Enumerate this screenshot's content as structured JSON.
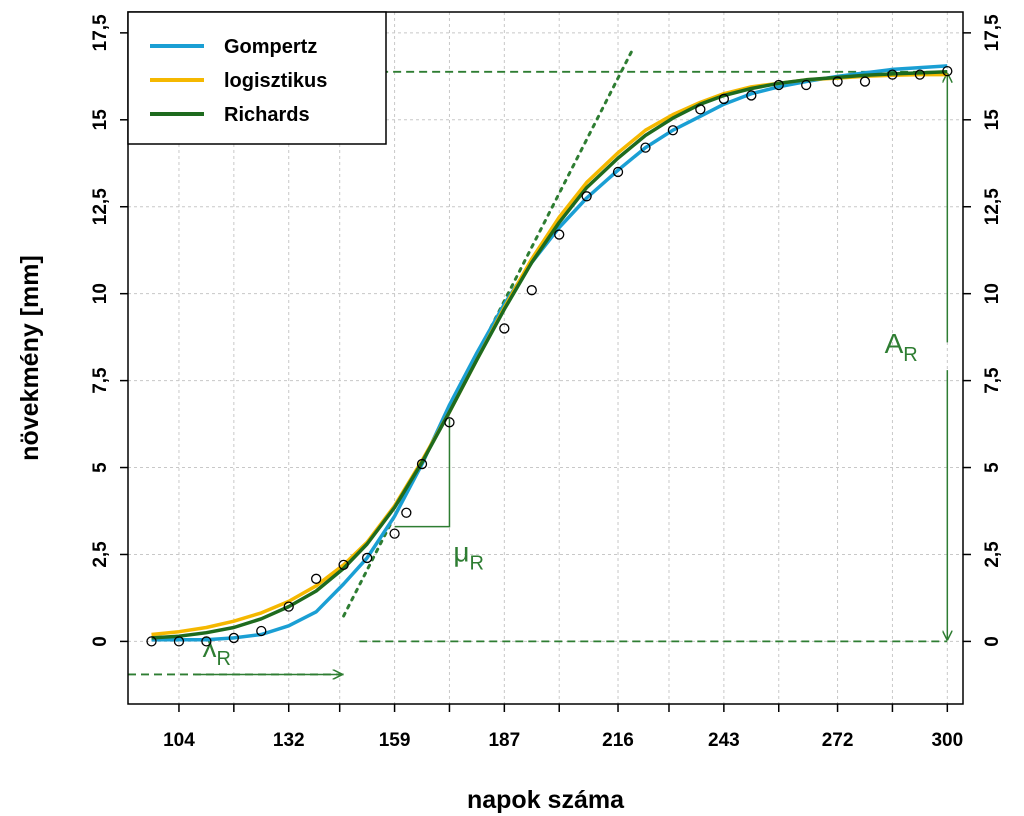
{
  "chart_data": {
    "type": "line",
    "xlabel": "napok száma",
    "ylabel": "növekmény [mm]",
    "xlim": [
      91,
      304
    ],
    "ylim": [
      -1.8,
      18.1
    ],
    "x_ticks": [
      {
        "value": 104,
        "label": "104"
      },
      {
        "value": 132,
        "label": "132"
      },
      {
        "value": 159,
        "label": "159"
      },
      {
        "value": 187,
        "label": "187"
      },
      {
        "value": 216,
        "label": "216"
      },
      {
        "value": 243,
        "label": "243"
      },
      {
        "value": 272,
        "label": "272"
      },
      {
        "value": 300,
        "label": "300"
      }
    ],
    "x_minor_ticks": [
      118,
      145,
      173,
      201,
      229,
      257,
      286
    ],
    "y_ticks": [
      {
        "value": 0,
        "label": "0"
      },
      {
        "value": 2.5,
        "label": "2,5"
      },
      {
        "value": 5,
        "label": "5"
      },
      {
        "value": 7.5,
        "label": "7,5"
      },
      {
        "value": 10,
        "label": "10"
      },
      {
        "value": 12.5,
        "label": "12,5"
      },
      {
        "value": 15,
        "label": "15"
      },
      {
        "value": 17.5,
        "label": "17,5"
      }
    ],
    "grid": true,
    "legend_position": "top-left",
    "series": [
      {
        "name": "Gompertz",
        "color": "#1a9fd4",
        "points": [
          [
            97,
            0.05
          ],
          [
            104,
            0.05
          ],
          [
            111,
            0.05
          ],
          [
            118,
            0.1
          ],
          [
            125,
            0.2
          ],
          [
            132,
            0.45
          ],
          [
            139,
            0.85
          ],
          [
            146,
            1.65
          ],
          [
            152,
            2.4
          ],
          [
            159,
            3.6
          ],
          [
            166,
            5.1
          ],
          [
            173,
            6.8
          ],
          [
            180,
            8.3
          ],
          [
            187,
            9.7
          ],
          [
            194,
            10.9
          ],
          [
            201,
            11.9
          ],
          [
            208,
            12.75
          ],
          [
            216,
            13.55
          ],
          [
            223,
            14.2
          ],
          [
            230,
            14.7
          ],
          [
            237,
            15.1
          ],
          [
            243,
            15.45
          ],
          [
            250,
            15.75
          ],
          [
            257,
            15.95
          ],
          [
            264,
            16.1
          ],
          [
            272,
            16.25
          ],
          [
            279,
            16.35
          ],
          [
            286,
            16.45
          ],
          [
            293,
            16.5
          ],
          [
            300,
            16.55
          ]
        ]
      },
      {
        "name": "logisztikus",
        "color": "#f5b800",
        "points": [
          [
            97,
            0.2
          ],
          [
            104,
            0.28
          ],
          [
            111,
            0.4
          ],
          [
            118,
            0.58
          ],
          [
            125,
            0.82
          ],
          [
            132,
            1.15
          ],
          [
            139,
            1.6
          ],
          [
            146,
            2.2
          ],
          [
            152,
            2.85
          ],
          [
            159,
            3.9
          ],
          [
            166,
            5.2
          ],
          [
            173,
            6.6
          ],
          [
            180,
            8.1
          ],
          [
            187,
            9.6
          ],
          [
            194,
            11.0
          ],
          [
            201,
            12.2
          ],
          [
            208,
            13.2
          ],
          [
            216,
            14.05
          ],
          [
            223,
            14.7
          ],
          [
            230,
            15.15
          ],
          [
            237,
            15.5
          ],
          [
            243,
            15.75
          ],
          [
            250,
            15.95
          ],
          [
            257,
            16.05
          ],
          [
            264,
            16.15
          ],
          [
            272,
            16.2
          ],
          [
            279,
            16.25
          ],
          [
            286,
            16.28
          ],
          [
            293,
            16.3
          ],
          [
            300,
            16.3
          ]
        ]
      },
      {
        "name": "Richards",
        "color": "#1e6b1e",
        "points": [
          [
            97,
            0.1
          ],
          [
            104,
            0.15
          ],
          [
            111,
            0.25
          ],
          [
            118,
            0.4
          ],
          [
            125,
            0.65
          ],
          [
            132,
            1.0
          ],
          [
            139,
            1.45
          ],
          [
            146,
            2.1
          ],
          [
            152,
            2.8
          ],
          [
            159,
            3.85
          ],
          [
            166,
            5.15
          ],
          [
            173,
            6.6
          ],
          [
            180,
            8.1
          ],
          [
            187,
            9.55
          ],
          [
            194,
            10.9
          ],
          [
            201,
            12.05
          ],
          [
            208,
            13.05
          ],
          [
            216,
            13.9
          ],
          [
            223,
            14.55
          ],
          [
            230,
            15.05
          ],
          [
            237,
            15.45
          ],
          [
            243,
            15.7
          ],
          [
            250,
            15.9
          ],
          [
            257,
            16.05
          ],
          [
            264,
            16.15
          ],
          [
            272,
            16.22
          ],
          [
            279,
            16.28
          ],
          [
            286,
            16.32
          ],
          [
            293,
            16.35
          ],
          [
            300,
            16.38
          ]
        ]
      }
    ],
    "observed_points": [
      [
        97,
        0.0
      ],
      [
        104,
        0.0
      ],
      [
        111,
        0.0
      ],
      [
        118,
        0.1
      ],
      [
        125,
        0.3
      ],
      [
        132,
        1.0
      ],
      [
        139,
        1.8
      ],
      [
        146,
        2.2
      ],
      [
        152,
        2.4
      ],
      [
        159,
        3.1
      ],
      [
        162,
        3.7
      ],
      [
        166,
        5.1
      ],
      [
        173,
        6.3
      ],
      [
        187,
        9.0
      ],
      [
        194,
        10.1
      ],
      [
        201,
        11.7
      ],
      [
        208,
        12.8
      ],
      [
        216,
        13.5
      ],
      [
        223,
        14.2
      ],
      [
        230,
        14.7
      ],
      [
        237,
        15.3
      ],
      [
        243,
        15.6
      ],
      [
        250,
        15.7
      ],
      [
        257,
        16.0
      ],
      [
        264,
        16.0
      ],
      [
        272,
        16.1
      ],
      [
        279,
        16.1
      ],
      [
        286,
        16.3
      ],
      [
        293,
        16.3
      ],
      [
        300,
        16.4
      ]
    ],
    "annotations": {
      "asymptote_A": 16.38,
      "lambda": 146,
      "mu": 0.221,
      "tangent_point": [
        166,
        5.15
      ],
      "slope_triangle": {
        "x0": 159,
        "x1": 173,
        "y0": 3.3,
        "y1": 6.4
      },
      "lambda_arrow_y": -0.95,
      "labels": {
        "A": {
          "main": "A",
          "sub": "R"
        },
        "mu": {
          "main": "μ",
          "sub": "R"
        },
        "lambda": {
          "main": "λ",
          "sub": "R"
        }
      }
    }
  }
}
